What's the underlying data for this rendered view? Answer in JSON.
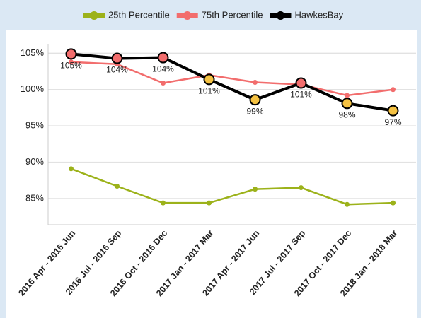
{
  "chart_data": {
    "type": "line",
    "categories": [
      "2016 Apr - 2016 Jun",
      "2016 Jul - 2016 Sep",
      "2016 Oct - 2016 Dec",
      "2017 Jan - 2017 Mar",
      "2017 Apr - 2017 Jun",
      "2017 Jul - 2017 Sep",
      "2017 Oct - 2017 Dec",
      "2018 Jan - 2018 Mar"
    ],
    "series": [
      {
        "name": "25th Percentile",
        "color": "#9cb21a",
        "values": [
          89.1,
          86.7,
          84.4,
          84.4,
          86.3,
          86.5,
          84.2,
          84.4
        ]
      },
      {
        "name": "75th Percentile",
        "color": "#f26d6d",
        "values": [
          103.8,
          103.5,
          100.9,
          102.0,
          101.0,
          100.7,
          99.2,
          100.0
        ]
      },
      {
        "name": "HawkesBay",
        "color": "#000000",
        "values": [
          104.9,
          104.3,
          104.4,
          101.4,
          98.6,
          100.9,
          98.1,
          97.1
        ],
        "value_labels": [
          "105%",
          "104%",
          "104%",
          "101%",
          "99%",
          "101%",
          "98%",
          "97%"
        ],
        "marker_colors": [
          "#f26d6d",
          "#f26d6d",
          "#f26d6d",
          "#f5c242",
          "#f5c242",
          "#f26d6d",
          "#f5c242",
          "#f5c242"
        ]
      }
    ],
    "ylim": [
      81.4,
      106.3
    ],
    "yticks": [
      {
        "value": 85,
        "label": "85%"
      },
      {
        "value": 90,
        "label": "90%"
      },
      {
        "value": 95,
        "label": "95%"
      },
      {
        "value": 100,
        "label": "100%"
      },
      {
        "value": 105,
        "label": "105%"
      }
    ],
    "grid": true
  }
}
